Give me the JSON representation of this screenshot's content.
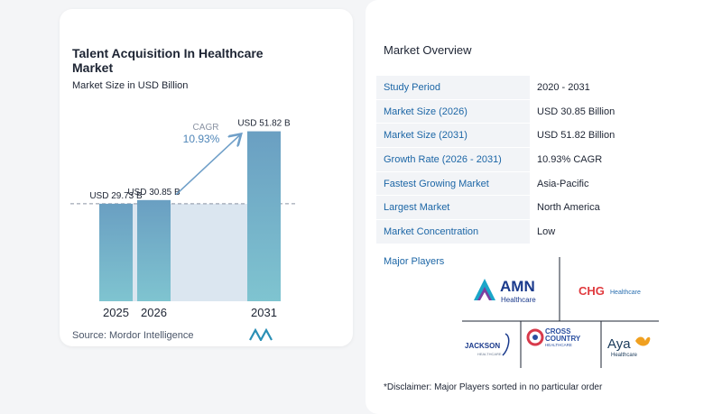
{
  "chart_card": {
    "title": "Talent Acquisition In Healthcare Market",
    "subtitle": "Market Size in USD Billion",
    "source": "Source: Mordor Intelligence",
    "cagr_label": "CAGR",
    "cagr_value": "10.93%"
  },
  "chart_data": {
    "type": "bar",
    "categories": [
      "2025",
      "2026",
      "2031"
    ],
    "values": [
      29.73,
      30.85,
      51.82
    ],
    "data_labels": [
      "USD 29.73 B",
      "USD 30.85 B",
      "USD 51.82 B"
    ],
    "title": "Talent Acquisition In Healthcare Market",
    "subtitle": "Market Size in USD Billion",
    "xlabel": "",
    "ylabel": "",
    "ylim": [
      0,
      55
    ],
    "grid": false,
    "annotation": "CAGR 10.93%"
  },
  "overview": {
    "title": "Market Overview",
    "rows": [
      {
        "label": "Study Period",
        "value": "2020 - 2031"
      },
      {
        "label": "Market Size (2026)",
        "value": "USD 30.85 Billion"
      },
      {
        "label": "Market Size (2031)",
        "value": "USD 51.82 Billion"
      },
      {
        "label": "Growth Rate (2026 - 2031)",
        "value": "10.93% CAGR"
      },
      {
        "label": "Fastest Growing Market",
        "value": "Asia-Pacific"
      },
      {
        "label": "Largest Market",
        "value": "North America"
      },
      {
        "label": "Market Concentration",
        "value": "Low"
      }
    ],
    "players_title": "Major Players",
    "players": [
      "AMN Healthcare",
      "CHG Healthcare",
      "Jackson Healthcare",
      "Cross Country Healthcare",
      "Aya Healthcare"
    ],
    "disclaimer": "*Disclaimer: Major Players sorted in no particular order"
  },
  "colors": {
    "bar_top": "#6a9fc2",
    "bar_bottom": "#7fc4d0",
    "band": "#dbe6f0",
    "arrow": "#6f9fc8",
    "label_blue": "#1c66a6"
  }
}
